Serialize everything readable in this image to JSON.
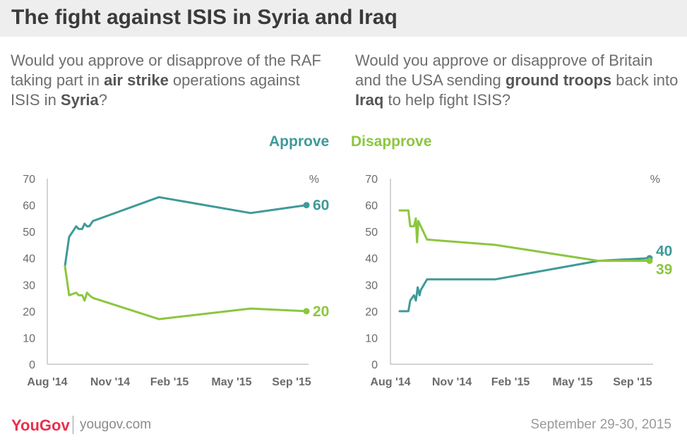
{
  "header": {
    "title": "The fight against ISIS in Syria and Iraq"
  },
  "questions": {
    "left": {
      "p1": "Would you approve or disapprove of the RAF taking part in ",
      "b1": "air strike",
      "p2": " operations against ISIS in ",
      "b2": "Syria",
      "p3": "?"
    },
    "right": {
      "p1": "Would you approve or disapprove of Britain and the USA sending ",
      "b1": "ground troops",
      "p2": " back into ",
      "b2": "Iraq",
      "p3": " to help fight ISIS?"
    }
  },
  "legend": {
    "approve": "Approve",
    "disapprove": "Disapprove"
  },
  "colors": {
    "approve": "#3e9a99",
    "disapprove": "#8cc63f",
    "axis": "#aaaaaa",
    "tick_text": "#6b6b6b"
  },
  "footer": {
    "brand": "YouGov",
    "site": "yougov.com",
    "date": "September 29-30, 2015"
  },
  "chart_data": [
    {
      "type": "line",
      "title": "Would you approve or disapprove of the RAF taking part in air strike operations against ISIS in Syria?",
      "ylabel": "%",
      "ylim": [
        0,
        70
      ],
      "yticks": [
        0,
        10,
        20,
        30,
        40,
        50,
        60,
        70
      ],
      "x_ticks": [
        "Aug '14",
        "Nov '14",
        "Feb '15",
        "May '15",
        "Sep '15"
      ],
      "grid": false,
      "end_labels": {
        "Approve": "60",
        "Disapprove": "20"
      },
      "series": [
        {
          "name": "Approve",
          "x": [
            "2014-08-20",
            "2014-08-27",
            "2014-09-08",
            "2014-09-12",
            "2014-09-18",
            "2014-09-22",
            "2014-09-26",
            "2014-09-30",
            "2014-10-06",
            "2015-01-25",
            "2015-06-28",
            "2015-09-30"
          ],
          "y": [
            37,
            48,
            52,
            51,
            51,
            53,
            52,
            52,
            54,
            63,
            57,
            60
          ]
        },
        {
          "name": "Disapprove",
          "x": [
            "2014-08-20",
            "2014-08-27",
            "2014-09-08",
            "2014-09-12",
            "2014-09-18",
            "2014-09-22",
            "2014-09-26",
            "2014-09-30",
            "2014-10-06",
            "2015-01-25",
            "2015-06-28",
            "2015-09-30"
          ],
          "y": [
            37,
            26,
            27,
            26,
            26,
            24,
            27,
            26,
            25,
            17,
            21,
            20
          ]
        }
      ]
    },
    {
      "type": "line",
      "title": "Would you approve or disapprove of Britain and the USA sending ground troops back into Iraq to help fight ISIS?",
      "ylabel": "%",
      "ylim": [
        0,
        70
      ],
      "yticks": [
        0,
        10,
        20,
        30,
        40,
        50,
        60,
        70
      ],
      "x_ticks": [
        "Aug '14",
        "Nov '14",
        "Feb '15",
        "May '15",
        "Sep '15"
      ],
      "grid": false,
      "end_labels": {
        "Approve": "40",
        "Disapprove": "39"
      },
      "series": [
        {
          "name": "Approve",
          "x": [
            "2014-08-25",
            "2014-09-08",
            "2014-09-11",
            "2014-09-17",
            "2014-09-20",
            "2014-09-23",
            "2014-09-26",
            "2014-09-28",
            "2014-10-08",
            "2015-01-25",
            "2015-07-10",
            "2015-09-30"
          ],
          "y": [
            20,
            20,
            24,
            26,
            24,
            29,
            26,
            28,
            32,
            32,
            39,
            40
          ]
        },
        {
          "name": "Disapprove",
          "x": [
            "2014-08-25",
            "2014-09-08",
            "2014-09-11",
            "2014-09-17",
            "2014-09-20",
            "2014-09-22",
            "2014-09-24",
            "2014-09-28",
            "2014-10-08",
            "2015-01-25",
            "2015-07-10",
            "2015-09-30"
          ],
          "y": [
            58,
            58,
            52,
            52,
            55,
            46,
            54,
            52,
            47,
            45,
            39,
            39
          ]
        }
      ]
    }
  ]
}
